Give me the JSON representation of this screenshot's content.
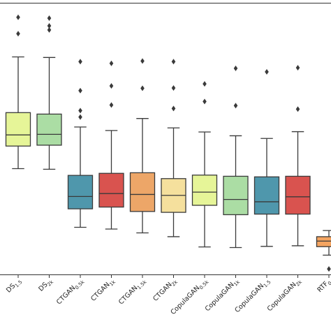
{
  "chart_data": {
    "type": "box",
    "title": "",
    "xlabel": "",
    "ylabel": "",
    "ylim": [
      0,
      100
    ],
    "grid": false,
    "categories": [
      {
        "base": "DS",
        "sub": "1.5",
        "color": "#e6f598"
      },
      {
        "base": "DS",
        "sub": "2k",
        "color": "#abdda4"
      },
      {
        "base": "CTGAN",
        "sub": "0.5k",
        "color": "#4f97ac"
      },
      {
        "base": "CTGAN",
        "sub": "1k",
        "color": "#d9534f"
      },
      {
        "base": "CTGAN",
        "sub": "1.5k",
        "color": "#eda668"
      },
      {
        "base": "CTGAN",
        "sub": "2k",
        "color": "#f5e09d"
      },
      {
        "base": "CopulaGAN",
        "sub": "0.5k",
        "color": "#e6f598"
      },
      {
        "base": "CopulaGAN",
        "sub": "1k",
        "color": "#abdda4"
      },
      {
        "base": "CopulaGAN",
        "sub": "1.5",
        "color": "#4f97ac"
      },
      {
        "base": "CopulaGAN",
        "sub": "2k",
        "color": "#d9534f"
      },
      {
        "base": "RTF",
        "sub": "0.",
        "color": "#f4a460"
      }
    ],
    "boxes": [
      {
        "whislo": 42.5,
        "q1": 50.2,
        "med": 54.0,
        "q3": 61.6,
        "whishi": 80.6,
        "fliers": [
          88.5,
          94.1
        ]
      },
      {
        "whislo": 42.3,
        "q1": 50.5,
        "med": 54.2,
        "q3": 61.1,
        "whishi": 80.4,
        "fliers": [
          89.8,
          91.2,
          93.8
        ]
      },
      {
        "whislo": 22.5,
        "q1": 28.8,
        "med": 33.0,
        "q3": 40.2,
        "whishi": 56.7,
        "fliers": [
          60.1,
          62.3,
          69.1,
          79.0
        ]
      },
      {
        "whislo": 21.9,
        "q1": 29.4,
        "med": 34.0,
        "q3": 40.9,
        "whishi": 55.5,
        "fliers": [
          64.2,
          70.7,
          78.4
        ]
      },
      {
        "whislo": 20.6,
        "q1": 27.9,
        "med": 33.7,
        "q3": 41.1,
        "whishi": 59.6,
        "fliers": [
          69.9,
          79.2
        ]
      },
      {
        "whislo": 19.3,
        "q1": 27.6,
        "med": 33.4,
        "q3": 39.1,
        "whishi": 56.4,
        "fliers": [
          63.0,
          70.0,
          79.0
        ]
      },
      {
        "whislo": 15.8,
        "q1": 30.0,
        "med": 34.5,
        "q3": 40.3,
        "whishi": 55.0,
        "fliers": [
          65.4,
          71.4
        ]
      },
      {
        "whislo": 15.6,
        "q1": 26.8,
        "med": 32.0,
        "q3": 39.9,
        "whishi": 53.7,
        "fliers": [
          64.0,
          76.7
        ]
      },
      {
        "whislo": 16.0,
        "q1": 27.0,
        "med": 31.2,
        "q3": 39.7,
        "whishi": 52.8,
        "fliers": [
          75.5
        ]
      },
      {
        "whislo": 16.2,
        "q1": 27.0,
        "med": 32.9,
        "q3": 39.9,
        "whishi": 55.1,
        "fliers": [
          62.8,
          76.9
        ]
      },
      {
        "whislo": 13.0,
        "q1": 15.9,
        "med": 17.8,
        "q3": 19.3,
        "whishi": 21.4,
        "fliers": [
          8.3
        ]
      }
    ]
  }
}
